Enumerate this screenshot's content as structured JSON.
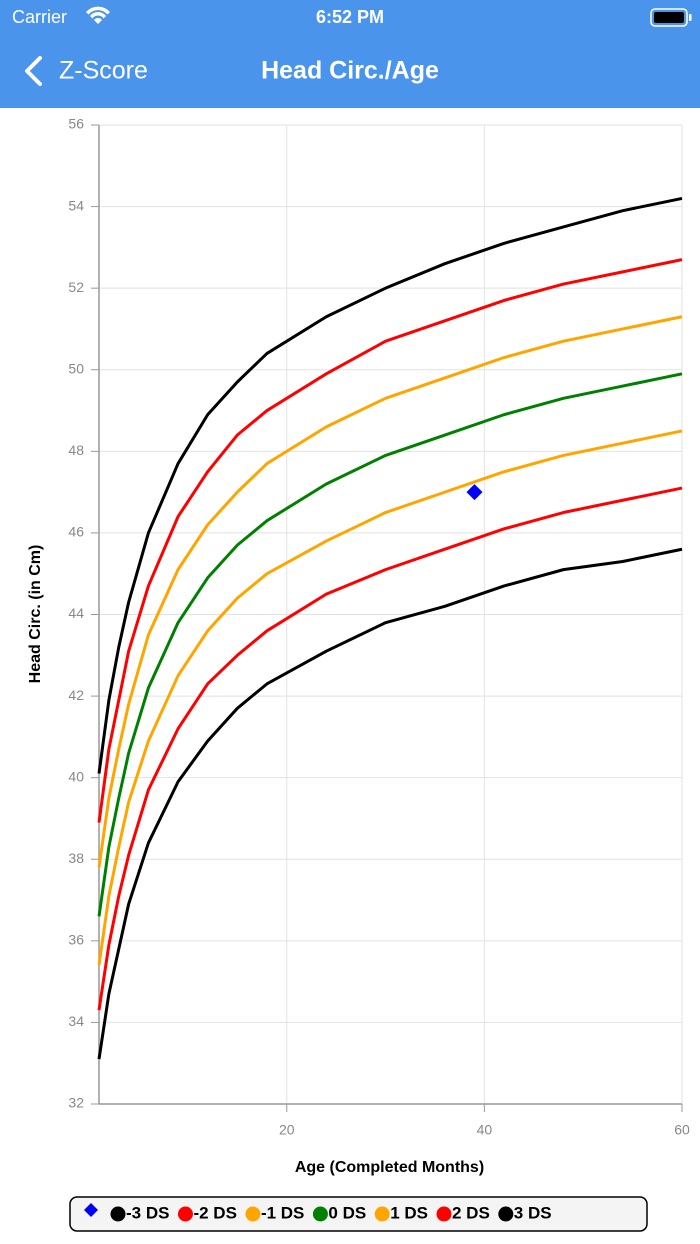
{
  "status_bar": {
    "carrier": "Carrier",
    "time": "6:52 PM"
  },
  "nav": {
    "back": "Z-Score",
    "title": "Head Circ./Age"
  },
  "chart_data": {
    "type": "line",
    "xlabel": "Age (Completed Months)",
    "ylabel": "Head Circ. (in Cm)",
    "x": [
      1,
      2,
      3,
      4,
      6,
      9,
      12,
      15,
      18,
      24,
      30,
      36,
      42,
      48,
      54,
      60
    ],
    "series": [
      {
        "color": "#0000ff",
        "marker": "diamond",
        "x": [
          39
        ],
        "values": [
          47
        ]
      },
      {
        "name": "-3 DS",
        "color": "#000000",
        "values": [
          33.1,
          34.7,
          35.8,
          36.9,
          38.4,
          39.9,
          40.9,
          41.7,
          42.3,
          43.1,
          43.8,
          44.2,
          44.7,
          45.1,
          45.3,
          45.6
        ]
      },
      {
        "name": "-2 DS",
        "color": "#ff0000",
        "values": [
          34.3,
          35.9,
          37.1,
          38.1,
          39.7,
          41.2,
          42.3,
          43.0,
          43.6,
          44.5,
          45.1,
          45.6,
          46.1,
          46.5,
          46.8,
          47.1
        ]
      },
      {
        "name": "-1 DS",
        "color": "#ffa500",
        "values": [
          35.4,
          37.1,
          38.3,
          39.4,
          40.9,
          42.5,
          43.6,
          44.4,
          45.0,
          45.8,
          46.5,
          47.0,
          47.5,
          47.9,
          48.2,
          48.5
        ]
      },
      {
        "name": "0 DS",
        "color": "#008000",
        "values": [
          36.6,
          38.3,
          39.5,
          40.6,
          42.2,
          43.8,
          44.9,
          45.7,
          46.3,
          47.2,
          47.9,
          48.4,
          48.9,
          49.3,
          49.6,
          49.9
        ]
      },
      {
        "name": "1 DS",
        "color": "#ffa500",
        "values": [
          37.8,
          39.5,
          40.7,
          41.8,
          43.5,
          45.1,
          46.2,
          47.0,
          47.7,
          48.6,
          49.3,
          49.8,
          50.3,
          50.7,
          51.0,
          51.3
        ]
      },
      {
        "name": "2 DS",
        "color": "#ff0000",
        "values": [
          38.9,
          40.7,
          41.9,
          43.1,
          44.7,
          46.4,
          47.5,
          48.4,
          49.0,
          49.9,
          50.7,
          51.2,
          51.7,
          52.1,
          52.4,
          52.7
        ]
      },
      {
        "name": "3 DS",
        "color": "#000000",
        "values": [
          40.1,
          41.9,
          43.2,
          44.3,
          46.0,
          47.7,
          48.9,
          49.7,
          50.4,
          51.3,
          52.0,
          52.6,
          53.1,
          53.5,
          53.9,
          54.2
        ]
      }
    ],
    "xlim": [
      1,
      60
    ],
    "xticks": [
      20,
      40,
      60
    ],
    "ylim": [
      32,
      56
    ],
    "yticks": [
      32,
      34,
      36,
      38,
      40,
      42,
      44,
      46,
      48,
      50,
      52,
      54,
      56
    ],
    "grid": true,
    "legend": "bottom"
  }
}
